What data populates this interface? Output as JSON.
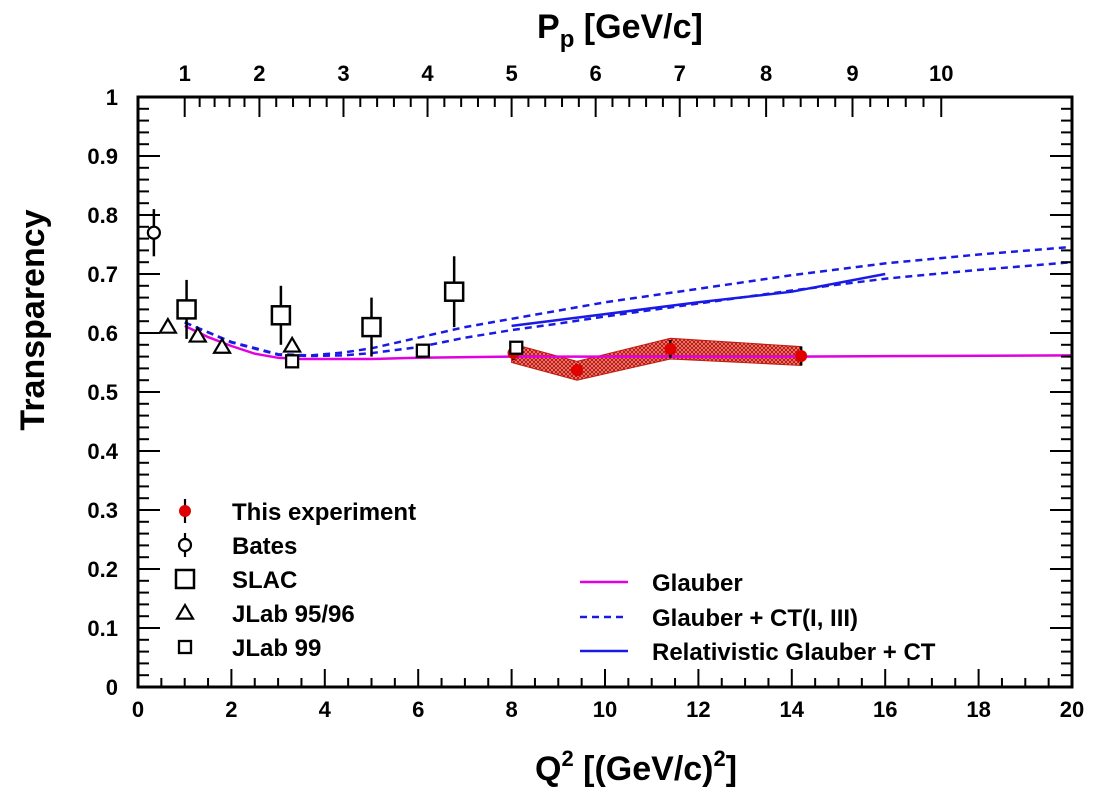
{
  "chart_data": {
    "type": "scatter",
    "xlabel": {
      "main": "Q",
      "sup": "2",
      "rest": " [(GeV/c)",
      "sup2": "2",
      "end": "]"
    },
    "x2label": {
      "main": "P",
      "sub": "p",
      "rest": " [GeV/c]"
    },
    "ylabel": "Transparency",
    "xlim": [
      0,
      20
    ],
    "ylim": [
      0,
      1
    ],
    "x_ticks": [
      0,
      2,
      4,
      6,
      8,
      10,
      12,
      14,
      16,
      18,
      20
    ],
    "x_tick_labels": [
      "0",
      "2",
      "4",
      "6",
      "8",
      "10",
      "12",
      "14",
      "16",
      "18",
      "20"
    ],
    "y_ticks": [
      0,
      0.1,
      0.2,
      0.3,
      0.4,
      0.5,
      0.6,
      0.7,
      0.8,
      0.9,
      1
    ],
    "y_tick_labels": [
      "0",
      "0.1",
      "0.2",
      "0.3",
      "0.4",
      "0.5",
      "0.6",
      "0.7",
      "0.8",
      "0.9",
      "1"
    ],
    "top_ticks": [
      {
        "label": "1",
        "q2": 1.0
      },
      {
        "label": "2",
        "q2": 2.6
      },
      {
        "label": "3",
        "q2": 4.4
      },
      {
        "label": "4",
        "q2": 6.2
      },
      {
        "label": "5",
        "q2": 8.0
      },
      {
        "label": "6",
        "q2": 9.8
      },
      {
        "label": "7",
        "q2": 11.6
      },
      {
        "label": "8",
        "q2": 13.45
      },
      {
        "label": "9",
        "q2": 15.3
      },
      {
        "label": "10",
        "q2": 17.2
      }
    ],
    "series": [
      {
        "name": "This experiment",
        "marker": "filled-circle",
        "color": "#e00000",
        "points": [
          {
            "x": 8.04,
            "y": 0.566,
            "err": 0.012
          },
          {
            "x": 9.4,
            "y": 0.537,
            "err": 0.01
          },
          {
            "x": 11.4,
            "y": 0.573,
            "err": 0.015
          },
          {
            "x": 14.2,
            "y": 0.561,
            "err": 0.016
          }
        ]
      },
      {
        "name": "Bates",
        "marker": "open-circle",
        "color": "#000000",
        "points": [
          {
            "x": 0.34,
            "y": 0.77,
            "err": 0.04
          }
        ]
      },
      {
        "name": "SLAC",
        "marker": "open-square-large",
        "color": "#000000",
        "points": [
          {
            "x": 1.04,
            "y": 0.64,
            "err": 0.05
          },
          {
            "x": 3.06,
            "y": 0.63,
            "err": 0.05
          },
          {
            "x": 5.0,
            "y": 0.61,
            "err": 0.05
          },
          {
            "x": 6.77,
            "y": 0.67,
            "err": 0.06
          }
        ]
      },
      {
        "name": "JLab 95/96",
        "marker": "open-triangle",
        "color": "#000000",
        "points": [
          {
            "x": 0.64,
            "y": 0.61,
            "err": 0.0
          },
          {
            "x": 1.28,
            "y": 0.595,
            "err": 0.0
          },
          {
            "x": 1.8,
            "y": 0.576,
            "err": 0.0
          },
          {
            "x": 3.3,
            "y": 0.578,
            "err": 0.0
          }
        ]
      },
      {
        "name": "JLab 99",
        "marker": "open-square-small",
        "color": "#000000",
        "points": [
          {
            "x": 3.3,
            "y": 0.552,
            "err": 0.0
          },
          {
            "x": 6.1,
            "y": 0.57,
            "err": 0.0
          },
          {
            "x": 8.1,
            "y": 0.575,
            "err": 0.0
          }
        ]
      }
    ],
    "curves": [
      {
        "name": "Glauber",
        "style": "solid",
        "color": "#e000e0",
        "points": [
          [
            1.0,
            0.612
          ],
          [
            1.5,
            0.593
          ],
          [
            2.0,
            0.578
          ],
          [
            2.5,
            0.565
          ],
          [
            3.0,
            0.558
          ],
          [
            3.5,
            0.556
          ],
          [
            4.0,
            0.556
          ],
          [
            5.0,
            0.556
          ],
          [
            6.0,
            0.558
          ],
          [
            8.0,
            0.56
          ],
          [
            10.0,
            0.56
          ],
          [
            14.0,
            0.56
          ],
          [
            20.0,
            0.562
          ]
        ]
      },
      {
        "name": "Glauber + CT(I, III)",
        "style": "dashed",
        "color": "#1a1ae6",
        "points": [
          [
            1.0,
            0.618
          ],
          [
            2.0,
            0.584
          ],
          [
            3.0,
            0.563
          ],
          [
            3.7,
            0.561
          ],
          [
            4.4,
            0.562
          ],
          [
            5.0,
            0.566
          ],
          [
            6.0,
            0.576
          ],
          [
            7.0,
            0.592
          ],
          [
            8.0,
            0.605
          ],
          [
            9.0,
            0.616
          ],
          [
            10.0,
            0.628
          ],
          [
            12.0,
            0.65
          ],
          [
            14.0,
            0.672
          ],
          [
            16.0,
            0.692
          ],
          [
            18.0,
            0.707
          ],
          [
            20.0,
            0.72
          ]
        ]
      },
      {
        "name": "Glauber + CT(I, III)",
        "style": "dashed",
        "color": "#1a1ae6",
        "points": [
          [
            1.0,
            0.618
          ],
          [
            2.0,
            0.585
          ],
          [
            3.0,
            0.564
          ],
          [
            3.7,
            0.562
          ],
          [
            4.4,
            0.567
          ],
          [
            5.0,
            0.574
          ],
          [
            6.0,
            0.592
          ],
          [
            7.0,
            0.61
          ],
          [
            8.0,
            0.624
          ],
          [
            9.0,
            0.638
          ],
          [
            10.0,
            0.652
          ],
          [
            12.0,
            0.675
          ],
          [
            14.0,
            0.698
          ],
          [
            16.0,
            0.718
          ],
          [
            18.0,
            0.733
          ],
          [
            20.0,
            0.746
          ]
        ]
      },
      {
        "name": "Relativistic Glauber + CT",
        "style": "solid",
        "color": "#1a1ae6",
        "points": [
          [
            8.0,
            0.612
          ],
          [
            10.0,
            0.632
          ],
          [
            12.0,
            0.652
          ],
          [
            14.0,
            0.67
          ],
          [
            16.0,
            0.7
          ]
        ]
      }
    ],
    "band": {
      "color": "#c21a10",
      "upper": [
        [
          8.0,
          0.582
        ],
        [
          9.4,
          0.552
        ],
        [
          11.4,
          0.591
        ],
        [
          14.2,
          0.577
        ]
      ],
      "lower": [
        [
          8.0,
          0.55
        ],
        [
          9.4,
          0.52
        ],
        [
          11.4,
          0.556
        ],
        [
          14.2,
          0.545
        ]
      ]
    },
    "legend_left": [
      "This experiment",
      "Bates",
      "SLAC",
      "JLab 95/96",
      "JLab 99"
    ],
    "legend_right": [
      "Glauber",
      "Glauber + CT(I, III)",
      "Relativistic Glauber + CT"
    ],
    "legend_placement": "bottom"
  }
}
